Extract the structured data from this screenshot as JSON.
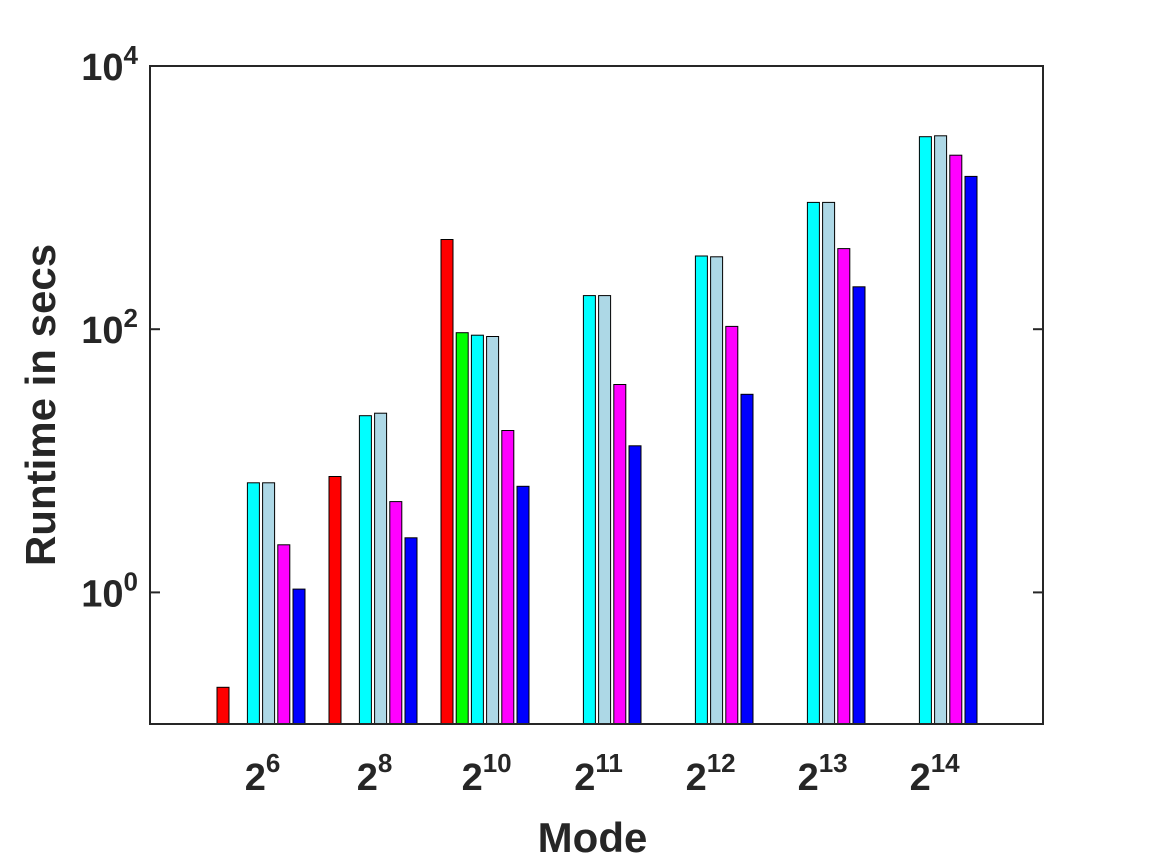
{
  "chart_data": {
    "type": "bar",
    "xlabel": "Mode",
    "ylabel": "Runtime in secs",
    "yscale": "log",
    "ylim": [
      0.1,
      10000
    ],
    "y_ticks": [
      {
        "value": 1,
        "base": "10",
        "exp": "0"
      },
      {
        "value": 100,
        "base": "10",
        "exp": "2"
      },
      {
        "value": 10000,
        "base": "10",
        "exp": "4"
      }
    ],
    "categories": [
      {
        "base": "2",
        "exp": "6"
      },
      {
        "base": "2",
        "exp": "8"
      },
      {
        "base": "2",
        "exp": "10"
      },
      {
        "base": "2",
        "exp": "11"
      },
      {
        "base": "2",
        "exp": "12"
      },
      {
        "base": "2",
        "exp": "13"
      },
      {
        "base": "2",
        "exp": "14"
      }
    ],
    "grid": false,
    "series": [
      {
        "color": "#ff0000",
        "values": [
          0.19,
          7.6,
          480,
          null,
          null,
          null,
          null
        ]
      },
      {
        "color": "#00ff00",
        "values": [
          null,
          null,
          94,
          null,
          null,
          null,
          null
        ]
      },
      {
        "color": "#00ffff",
        "values": [
          6.8,
          22,
          90,
          180,
          360,
          920,
          2900
        ]
      },
      {
        "color": "#add8e6",
        "values": [
          6.8,
          23,
          88,
          180,
          355,
          920,
          2950
        ]
      },
      {
        "color": "#ff00ff",
        "values": [
          2.3,
          4.9,
          17,
          38,
          105,
          410,
          2100
        ]
      },
      {
        "color": "#0000ff",
        "values": [
          1.06,
          2.6,
          6.4,
          13,
          32,
          210,
          1450
        ]
      }
    ]
  }
}
